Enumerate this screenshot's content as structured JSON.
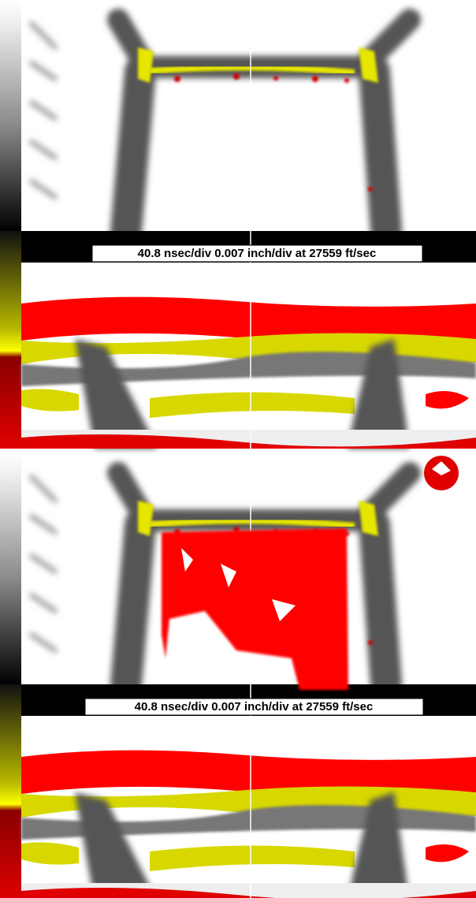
{
  "panels": [
    {
      "caption": "40.8 nsec/div 0.007 inch/div at 27559 ft/sec"
    },
    {
      "caption": "40.8 nsec/div 0.007 inch/div at 27559 ft/sec"
    }
  ]
}
